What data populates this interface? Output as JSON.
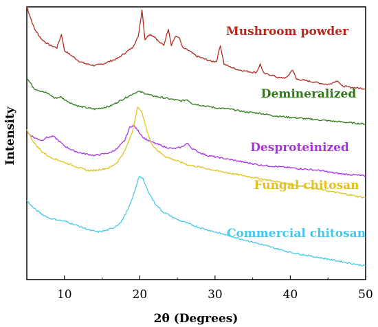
{
  "chart_data": {
    "type": "line",
    "xlabel": "2θ (Degrees)",
    "ylabel": "Intensity",
    "xlim": [
      5,
      50
    ],
    "xticks": [
      10,
      20,
      30,
      40,
      50
    ],
    "yticks_shown": false,
    "grid": false,
    "legend": "inline labels at right of each curve",
    "series": [
      {
        "name": "Mushroom powder",
        "color": "#b5291d",
        "points": [
          [
            5,
            1.0
          ],
          [
            6,
            0.92
          ],
          [
            7,
            0.88
          ],
          [
            8,
            0.86
          ],
          [
            9,
            0.85
          ],
          [
            9.6,
            0.9
          ],
          [
            10,
            0.84
          ],
          [
            11,
            0.82
          ],
          [
            12,
            0.8
          ],
          [
            13,
            0.79
          ],
          [
            14,
            0.785
          ],
          [
            15,
            0.79
          ],
          [
            16,
            0.8
          ],
          [
            17,
            0.81
          ],
          [
            18,
            0.83
          ],
          [
            19,
            0.85
          ],
          [
            19.8,
            0.89
          ],
          [
            20.3,
            0.99
          ],
          [
            20.7,
            0.88
          ],
          [
            21.3,
            0.9
          ],
          [
            22,
            0.89
          ],
          [
            22.6,
            0.87
          ],
          [
            23.2,
            0.86
          ],
          [
            23.8,
            0.92
          ],
          [
            24.2,
            0.86
          ],
          [
            24.7,
            0.89
          ],
          [
            25.2,
            0.89
          ],
          [
            25.7,
            0.85
          ],
          [
            26.5,
            0.84
          ],
          [
            27.5,
            0.82
          ],
          [
            28.5,
            0.81
          ],
          [
            29.5,
            0.8
          ],
          [
            30.2,
            0.8
          ],
          [
            30.7,
            0.86
          ],
          [
            31.2,
            0.79
          ],
          [
            32,
            0.78
          ],
          [
            33,
            0.77
          ],
          [
            34,
            0.765
          ],
          [
            35,
            0.76
          ],
          [
            35.5,
            0.76
          ],
          [
            36,
            0.79
          ],
          [
            36.5,
            0.755
          ],
          [
            37.5,
            0.75
          ],
          [
            38.5,
            0.74
          ],
          [
            39.5,
            0.74
          ],
          [
            40.3,
            0.77
          ],
          [
            40.8,
            0.735
          ],
          [
            42,
            0.73
          ],
          [
            43,
            0.725
          ],
          [
            44,
            0.72
          ],
          [
            45,
            0.715
          ],
          [
            46.3,
            0.73
          ],
          [
            46.8,
            0.71
          ],
          [
            48,
            0.705
          ],
          [
            50,
            0.7
          ]
        ]
      },
      {
        "name": "Demineralized",
        "color": "#2c7a16",
        "points": [
          [
            5,
            0.74
          ],
          [
            6,
            0.7
          ],
          [
            7,
            0.69
          ],
          [
            8,
            0.68
          ],
          [
            8.7,
            0.665
          ],
          [
            9.5,
            0.67
          ],
          [
            10,
            0.66
          ],
          [
            11,
            0.645
          ],
          [
            12,
            0.635
          ],
          [
            13,
            0.63
          ],
          [
            14,
            0.625
          ],
          [
            15,
            0.63
          ],
          [
            16,
            0.635
          ],
          [
            17,
            0.65
          ],
          [
            18,
            0.665
          ],
          [
            19,
            0.68
          ],
          [
            19.8,
            0.69
          ],
          [
            20.5,
            0.685
          ],
          [
            21.5,
            0.675
          ],
          [
            22.5,
            0.67
          ],
          [
            23.5,
            0.665
          ],
          [
            24.5,
            0.66
          ],
          [
            25.5,
            0.655
          ],
          [
            26.3,
            0.66
          ],
          [
            27,
            0.645
          ],
          [
            28,
            0.64
          ],
          [
            29,
            0.635
          ],
          [
            30,
            0.63
          ],
          [
            32,
            0.625
          ],
          [
            34,
            0.615
          ],
          [
            36,
            0.61
          ],
          [
            38,
            0.6
          ],
          [
            40,
            0.595
          ],
          [
            42,
            0.59
          ],
          [
            44,
            0.585
          ],
          [
            46,
            0.58
          ],
          [
            48,
            0.575
          ],
          [
            50,
            0.57
          ]
        ]
      },
      {
        "name": "Desproteinized",
        "color": "#a832e6",
        "points": [
          [
            5,
            0.54
          ],
          [
            6,
            0.52
          ],
          [
            7,
            0.51
          ],
          [
            7.5,
            0.52
          ],
          [
            8.5,
            0.525
          ],
          [
            9,
            0.515
          ],
          [
            10,
            0.49
          ],
          [
            11,
            0.475
          ],
          [
            12,
            0.465
          ],
          [
            13,
            0.46
          ],
          [
            14,
            0.455
          ],
          [
            15,
            0.46
          ],
          [
            16,
            0.465
          ],
          [
            17,
            0.48
          ],
          [
            18,
            0.51
          ],
          [
            18.7,
            0.56
          ],
          [
            19.2,
            0.565
          ],
          [
            19.8,
            0.545
          ],
          [
            20.5,
            0.52
          ],
          [
            21.5,
            0.505
          ],
          [
            22.5,
            0.495
          ],
          [
            23.5,
            0.485
          ],
          [
            24.5,
            0.48
          ],
          [
            25.5,
            0.485
          ],
          [
            26.3,
            0.5
          ],
          [
            27,
            0.48
          ],
          [
            28,
            0.465
          ],
          [
            29,
            0.455
          ],
          [
            30,
            0.45
          ],
          [
            32,
            0.44
          ],
          [
            34,
            0.43
          ],
          [
            36,
            0.42
          ],
          [
            38,
            0.415
          ],
          [
            40,
            0.41
          ],
          [
            42,
            0.405
          ],
          [
            44,
            0.4
          ],
          [
            46,
            0.39
          ],
          [
            48,
            0.385
          ],
          [
            50,
            0.38
          ]
        ]
      },
      {
        "name": "Fungal chitosan",
        "color": "#e0c21a",
        "points": [
          [
            5,
            0.55
          ],
          [
            6,
            0.5
          ],
          [
            7,
            0.47
          ],
          [
            8,
            0.45
          ],
          [
            9,
            0.44
          ],
          [
            10,
            0.43
          ],
          [
            11,
            0.42
          ],
          [
            12,
            0.41
          ],
          [
            13,
            0.4
          ],
          [
            14,
            0.4
          ],
          [
            15,
            0.405
          ],
          [
            16,
            0.41
          ],
          [
            17,
            0.43
          ],
          [
            18,
            0.47
          ],
          [
            19,
            0.54
          ],
          [
            19.7,
            0.63
          ],
          [
            20.2,
            0.62
          ],
          [
            20.8,
            0.56
          ],
          [
            21.5,
            0.5
          ],
          [
            22.5,
            0.47
          ],
          [
            23.5,
            0.45
          ],
          [
            24.5,
            0.44
          ],
          [
            25.5,
            0.43
          ],
          [
            26.5,
            0.42
          ],
          [
            27.5,
            0.415
          ],
          [
            28.5,
            0.41
          ],
          [
            30,
            0.4
          ],
          [
            32,
            0.39
          ],
          [
            34,
            0.38
          ],
          [
            36,
            0.37
          ],
          [
            38,
            0.36
          ],
          [
            40,
            0.35
          ],
          [
            42,
            0.34
          ],
          [
            44,
            0.33
          ],
          [
            46,
            0.32
          ],
          [
            48,
            0.31
          ],
          [
            50,
            0.3
          ]
        ]
      },
      {
        "name": "Commercial chitosan",
        "color": "#46c8ea",
        "points": [
          [
            5,
            0.29
          ],
          [
            6,
            0.26
          ],
          [
            7,
            0.24
          ],
          [
            8,
            0.225
          ],
          [
            9,
            0.22
          ],
          [
            9.8,
            0.215
          ],
          [
            10.5,
            0.21
          ],
          [
            11.5,
            0.2
          ],
          [
            12.5,
            0.19
          ],
          [
            13.5,
            0.18
          ],
          [
            14.5,
            0.175
          ],
          [
            15.5,
            0.18
          ],
          [
            16.5,
            0.19
          ],
          [
            17.5,
            0.21
          ],
          [
            18.5,
            0.26
          ],
          [
            19.3,
            0.32
          ],
          [
            19.9,
            0.38
          ],
          [
            20.4,
            0.37
          ],
          [
            21,
            0.33
          ],
          [
            22,
            0.28
          ],
          [
            23,
            0.25
          ],
          [
            24,
            0.235
          ],
          [
            25,
            0.22
          ],
          [
            26,
            0.21
          ],
          [
            27,
            0.2
          ],
          [
            28,
            0.19
          ],
          [
            30,
            0.175
          ],
          [
            32,
            0.16
          ],
          [
            34,
            0.145
          ],
          [
            36,
            0.13
          ],
          [
            38,
            0.115
          ],
          [
            40,
            0.1
          ],
          [
            42,
            0.09
          ],
          [
            44,
            0.08
          ],
          [
            46,
            0.07
          ],
          [
            48,
            0.06
          ],
          [
            50,
            0.05
          ]
        ]
      }
    ]
  }
}
